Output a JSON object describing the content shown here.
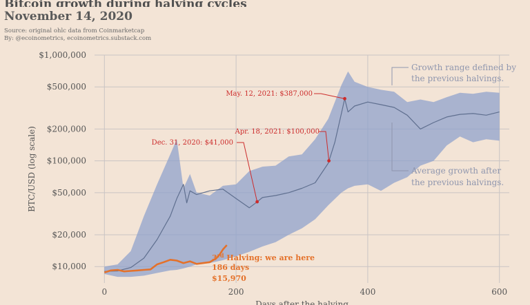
{
  "header": {
    "title_partial": "Bitcoin growth during halving cycles",
    "subtitle": "November 14, 2020",
    "source": "Source: original ohlc data from Coinmarketcap",
    "byline": "By: @ecoinometrics, ecoinometrics.substack.com"
  },
  "colors": {
    "background": "#f3e4d6",
    "band": "#8c9fcc",
    "average_line": "#5f6f8f",
    "current_line": "#e4712a",
    "annotation_red": "#cc2b2b",
    "annotation_gray": "#8f96ae",
    "grid": "#c9c4c4"
  },
  "chart_data": {
    "type": "area",
    "scale_y": "log",
    "grid": true,
    "xlabel": "Days after the halving",
    "ylabel": "BTC/USD (log scale)",
    "xlim": [
      -15,
      615
    ],
    "ylim": [
      7000,
      1000000
    ],
    "x_ticks": [
      0,
      200,
      400,
      600
    ],
    "x_tick_labels": [
      "0",
      "200",
      "400",
      "600"
    ],
    "y_ticks": [
      10000,
      20000,
      50000,
      100000,
      200000,
      500000,
      1000000
    ],
    "y_tick_labels": [
      "$10,000",
      "$20,000",
      "$50,000",
      "$100,000",
      "$200,000",
      "$500,000",
      "$1,000,000"
    ],
    "series": [
      {
        "kind": "range_band",
        "x": [
          0,
          20,
          40,
          60,
          80,
          100,
          110,
          120,
          130,
          140,
          160,
          180,
          200,
          220,
          240,
          260,
          280,
          300,
          320,
          340,
          360,
          370,
          380,
          400,
          420,
          440,
          460,
          480,
          500,
          520,
          540,
          560,
          580,
          600
        ],
        "upper": [
          10000,
          10500,
          14000,
          30000,
          60000,
          115000,
          160000,
          55000,
          75000,
          50000,
          47000,
          58000,
          60000,
          80000,
          88000,
          90000,
          110000,
          115000,
          160000,
          250000,
          520000,
          700000,
          560000,
          500000,
          470000,
          450000,
          360000,
          380000,
          360000,
          400000,
          440000,
          430000,
          450000,
          440000
        ],
        "lower": [
          8500,
          8000,
          8000,
          8200,
          8700,
          9200,
          9300,
          9600,
          10000,
          10500,
          10800,
          11500,
          12500,
          13800,
          15500,
          17000,
          20000,
          23000,
          28000,
          38000,
          50000,
          55000,
          58000,
          60000,
          52000,
          62000,
          70000,
          90000,
          100000,
          140000,
          170000,
          150000,
          160000,
          155000
        ]
      },
      {
        "name": "Average growth after the previous halvings.",
        "kind": "line",
        "x": [
          0,
          20,
          40,
          60,
          80,
          100,
          110,
          120,
          125,
          130,
          140,
          160,
          180,
          200,
          220,
          230,
          240,
          260,
          280,
          300,
          320,
          340,
          350,
          360,
          365,
          370,
          380,
          400,
          420,
          440,
          460,
          480,
          500,
          520,
          540,
          560,
          580,
          600
        ],
        "y": [
          9000,
          9100,
          9800,
          12000,
          18000,
          30000,
          44000,
          60000,
          40000,
          52000,
          48000,
          52000,
          54000,
          44000,
          36000,
          40000,
          45000,
          47000,
          50000,
          55000,
          62000,
          95000,
          150000,
          280000,
          387000,
          290000,
          330000,
          360000,
          340000,
          320000,
          270000,
          200000,
          230000,
          260000,
          275000,
          280000,
          270000,
          290000
        ]
      },
      {
        "name": "3rd Halving: we are here",
        "kind": "line",
        "x": [
          0,
          10,
          20,
          30,
          40,
          50,
          60,
          70,
          80,
          90,
          100,
          110,
          120,
          130,
          140,
          150,
          160,
          170,
          175,
          180,
          186
        ],
        "y": [
          8800,
          9200,
          9300,
          9000,
          9100,
          9200,
          9300,
          9400,
          10500,
          11000,
          11600,
          11400,
          10800,
          11200,
          10600,
          10800,
          11000,
          12000,
          13000,
          14500,
          15970
        ]
      }
    ],
    "points": [
      {
        "x": 232,
        "y": 41000,
        "label": "Dec. 31, 2020: $41,000"
      },
      {
        "x": 341,
        "y": 100000,
        "label": "Apr. 18, 2021: $100,000"
      },
      {
        "x": 365,
        "y": 387000,
        "label": "May. 12, 2021: $387,000"
      }
    ],
    "annotations": {
      "growth_range": [
        "Growth range defined by",
        "the previous halvings."
      ],
      "average_growth": [
        "Average growth after",
        "the previous halvings."
      ],
      "halving": {
        "ordinal": "3",
        "sup": "rd",
        "text": " Halving: we are here",
        "days": "186 days",
        "price": "$15,970"
      }
    }
  }
}
